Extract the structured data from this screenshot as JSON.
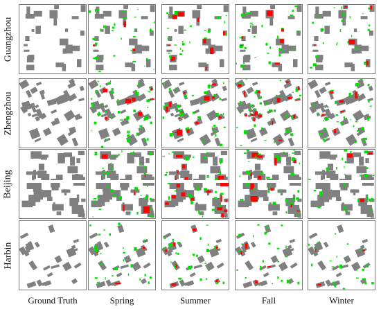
{
  "rows": [
    {
      "label": "Guangzhou"
    },
    {
      "label": "Zhengzhou"
    },
    {
      "label": "Beijing"
    },
    {
      "label": "Harbin"
    }
  ],
  "columns": [
    {
      "label": "Ground Truth"
    },
    {
      "label": "Spring"
    },
    {
      "label": "Summer"
    },
    {
      "label": "Fall"
    },
    {
      "label": "Winter"
    }
  ],
  "colors": {
    "building": "#808080",
    "background": "#ffffff",
    "false_positive": "#00e000",
    "false_negative": "#ff0000",
    "border": "#777777"
  }
}
